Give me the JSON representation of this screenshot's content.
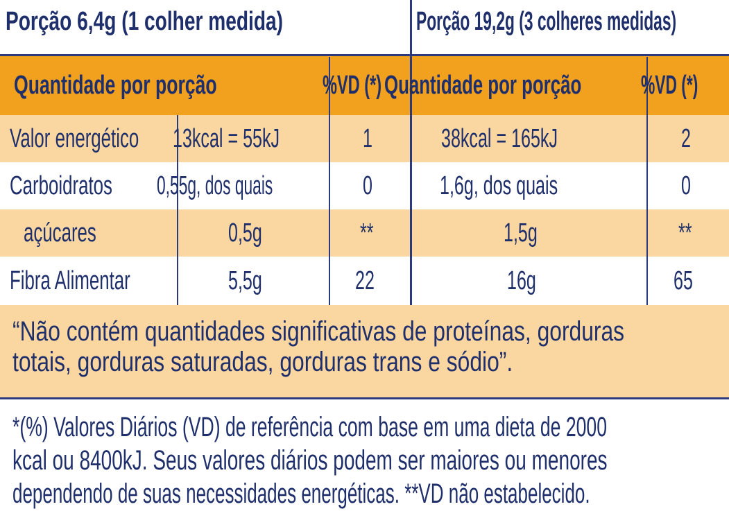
{
  "portion_1_title": "Porção 6,4g (1 colher medida)",
  "portion_2_title": "Porção 19,2g (3 colheres medidas)",
  "header": {
    "qty_1": "Quantidade por porção",
    "vd_1": "%VD (*)",
    "qty_2": "Quantidade por porção",
    "vd_2": "%VD (*)"
  },
  "rows": [
    {
      "name": "Valor energético",
      "amount_1": "13kcal = 55kJ",
      "vd_1": "1",
      "amount_2": "38kcal = 165kJ",
      "vd_2": "2"
    },
    {
      "name": "Carboidratos",
      "amount_1": "0,55g, dos quais",
      "vd_1": "0",
      "amount_2": "1,6g, dos quais",
      "vd_2": "0"
    },
    {
      "name": "açúcares",
      "amount_1": "0,5g",
      "vd_1": "**",
      "amount_2": "1,5g",
      "vd_2": "**"
    },
    {
      "name": "Fibra Alimentar",
      "amount_1": "5,5g",
      "vd_1": "22",
      "amount_2": "16g",
      "vd_2": "65"
    }
  ],
  "statement_line1": "“Não contém quantidades significativas de proteínas, gorduras",
  "statement_line2": "totais, gorduras saturadas, gorduras trans e sódio”.",
  "footnote_line1": "*(%) Valores Diários (VD) de referência com base em uma dieta de 2000",
  "footnote_line2": "kcal ou 8400kJ. Seus valores diários podem ser maiores ou menores",
  "footnote_line3": "dependendo de suas necessidades energéticas. **VD não estabelecido.",
  "colors": {
    "text": "#1f2f6b",
    "header_orange": "#f2a11f",
    "row_peach": "#fad7a0",
    "rule": "#2a3a7c"
  }
}
